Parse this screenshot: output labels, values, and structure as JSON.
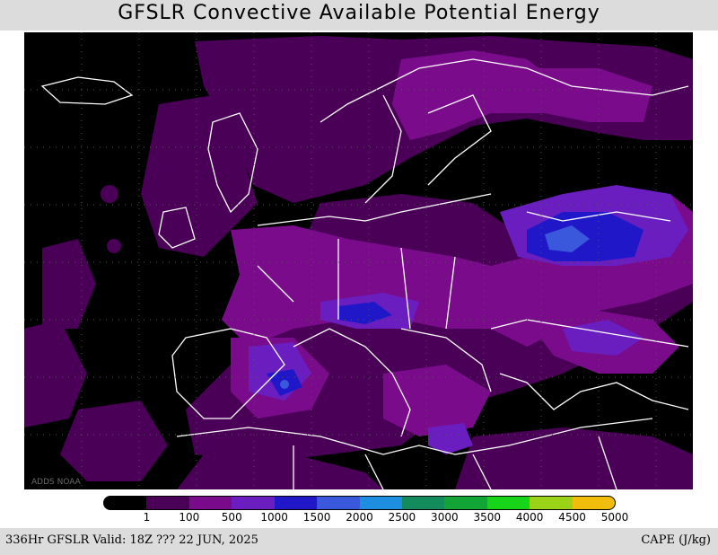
{
  "title": "GFSLR Convective Available Potential Energy",
  "map": {
    "credit": "ADDS NOAA",
    "region": "Europe and North Africa"
  },
  "legend": {
    "levels": [
      "1",
      "100",
      "500",
      "1000",
      "1500",
      "2000",
      "2500",
      "3000",
      "3500",
      "4000",
      "4500",
      "5000"
    ],
    "colors": [
      "#000000",
      "#4a0057",
      "#7a0c8c",
      "#6a1ec0",
      "#2018c8",
      "#3a58dc",
      "#1e8ee0",
      "#138b5c",
      "#13a637",
      "#18d418",
      "#9ad218",
      "#f0bd0a"
    ]
  },
  "footer": {
    "left": "336Hr GFSLR Valid: 18Z ??? 22 JUN, 2025",
    "right": "CAPE (J/kg)"
  }
}
